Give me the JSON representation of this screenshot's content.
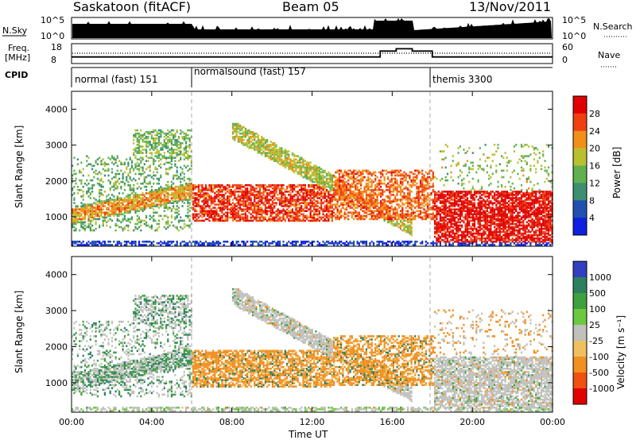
{
  "header": {
    "station": "Saskatoon (fitACF)",
    "beam": "Beam 05",
    "date": "13/Nov/2011"
  },
  "sky_panel": {
    "left_label": "N.Sky",
    "right_label": "N.Search",
    "left_ticks": [
      "10^5",
      "10^0"
    ],
    "right_ticks": [
      "10^5",
      "10^0"
    ]
  },
  "freq_panel": {
    "left_label_line1": "Freq.",
    "left_label_line2": "[MHz]",
    "left_ticks": [
      "18",
      "8"
    ],
    "right_label": "Nave",
    "right_ticks": [
      "60",
      "0"
    ]
  },
  "cpid": {
    "label": "CPID",
    "modes": [
      {
        "name": "normal (fast) 151",
        "start_hour": 0
      },
      {
        "name": "normalsound (fast) 157",
        "start_hour": 6
      },
      {
        "name": "themis 3300",
        "start_hour": 18
      }
    ]
  },
  "power_panel": {
    "ylabel": "Slant Range [km]",
    "yticks": [
      1000,
      2000,
      3000,
      4000
    ],
    "colorbar_label": "Power [dB]",
    "colorbar_ticks": [
      "4",
      "8",
      "12",
      "16",
      "20",
      "24",
      "28"
    ],
    "colorbar_colors": [
      "#1020e0",
      "#2050b0",
      "#3c9070",
      "#60b050",
      "#b8c030",
      "#f09018",
      "#f04010",
      "#e00000"
    ]
  },
  "velocity_panel": {
    "ylabel": "Slant Range [km]",
    "yticks": [
      1000,
      2000,
      3000,
      4000
    ],
    "colorbar_label": "Velocity [m s⁻¹]",
    "colorbar_ticks": [
      "1000",
      "500",
      "100",
      "25",
      "-25",
      "-100",
      "-500",
      "-1000"
    ],
    "colorbar_colors": [
      "#3040c0",
      "#2e7f60",
      "#3fa040",
      "#6cc840",
      "#c0c0bc",
      "#f0c060",
      "#f09020",
      "#f05010",
      "#e00000"
    ]
  },
  "x_axis": {
    "label": "Time UT",
    "ticks": [
      "00:00",
      "04:00",
      "08:00",
      "12:00",
      "16:00",
      "20:00",
      "00:00"
    ]
  },
  "chart_data": {
    "type": "heatmap",
    "x_range_hours": [
      0,
      24
    ],
    "y_range_km": [
      180,
      4500
    ],
    "mode_boundaries_hours": [
      6,
      18
    ],
    "nave_steps": [
      {
        "from_hour": 0,
        "to_hour": 15.4,
        "value": 20
      },
      {
        "from_hour": 15.4,
        "to_hour": 16.2,
        "value": 40
      },
      {
        "from_hour": 16.2,
        "to_hour": 17.0,
        "value": 48
      },
      {
        "from_hour": 17.0,
        "to_hour": 18.0,
        "value": 40
      },
      {
        "from_hour": 18.0,
        "to_hour": 24.0,
        "value": 20
      }
    ],
    "freq_mhz_approx": 11
  }
}
